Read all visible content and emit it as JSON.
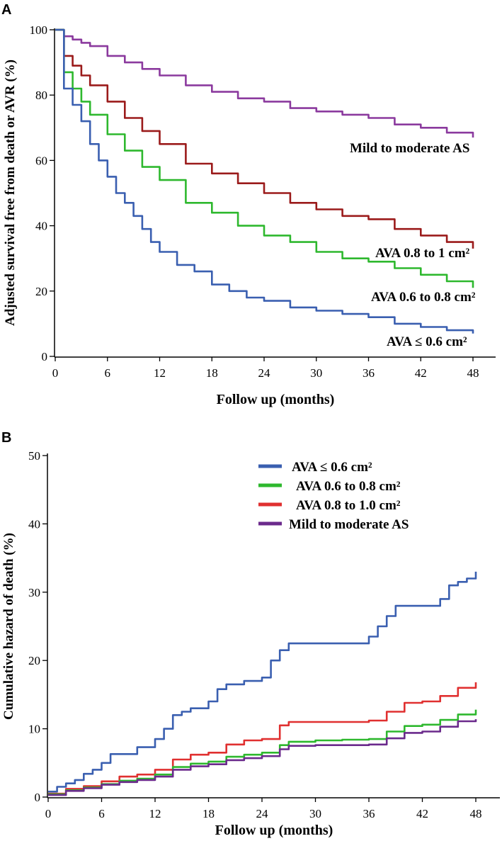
{
  "chart_data": [
    {
      "type": "line",
      "panel_label": "A",
      "xlabel": "Follow up (months)",
      "ylabel": "Adjusted survival free from death or AVR (%)",
      "xlim": [
        0,
        48
      ],
      "ylim": [
        0,
        100
      ],
      "xticks": [
        0,
        6,
        12,
        18,
        24,
        30,
        36,
        42,
        48
      ],
      "yticks": [
        0,
        20,
        40,
        60,
        80,
        100
      ],
      "series": [
        {
          "name": "Mild to moderate AS",
          "color": "#8b3a9e",
          "x": [
            0,
            1,
            2,
            3,
            4,
            6,
            8,
            10,
            12,
            15,
            18,
            21,
            24,
            27,
            30,
            33,
            36,
            39,
            42,
            45,
            48
          ],
          "y": [
            100,
            98,
            97,
            96,
            95,
            92,
            90,
            88,
            86,
            83,
            81,
            79,
            78,
            76,
            75,
            74,
            73,
            71,
            70,
            68.5,
            67
          ]
        },
        {
          "name": "AVA 0.8 to 1 cm²",
          "color": "#9b1b1b",
          "x": [
            0,
            1,
            2,
            3,
            4,
            6,
            8,
            10,
            12,
            15,
            18,
            21,
            24,
            27,
            30,
            33,
            36,
            39,
            42,
            45,
            48
          ],
          "y": [
            100,
            92,
            89,
            86,
            83,
            78,
            73,
            69,
            65,
            59,
            56,
            53,
            50,
            47,
            45,
            43,
            42,
            39,
            37,
            35,
            33
          ]
        },
        {
          "name": "AVA 0.6 to 0.8 cm²",
          "color": "#2eb82e",
          "x": [
            0,
            1,
            2,
            3,
            4,
            6,
            8,
            10,
            12,
            15,
            18,
            21,
            24,
            27,
            30,
            33,
            36,
            39,
            42,
            45,
            48
          ],
          "y": [
            100,
            87,
            82,
            78,
            74,
            68,
            63,
            58,
            54,
            47,
            44,
            40,
            37,
            35,
            32,
            30,
            29,
            27,
            25,
            23,
            21
          ]
        },
        {
          "name": "AVA ≤ 0.6 cm²",
          "color": "#3a5fb0",
          "x": [
            0,
            1,
            2,
            3,
            4,
            5,
            6,
            7,
            8,
            9,
            10,
            11,
            12,
            14,
            16,
            18,
            20,
            22,
            24,
            27,
            30,
            33,
            36,
            39,
            42,
            45,
            48
          ],
          "y": [
            100,
            82,
            77,
            72,
            65,
            60,
            55,
            50,
            47,
            43,
            39,
            35,
            32,
            28,
            26,
            22,
            20,
            18,
            17,
            15,
            14,
            13,
            12,
            10,
            9,
            8,
            7
          ]
        }
      ],
      "annotations": [
        "Mild to moderate AS",
        "AVA 0.8 to 1 cm²",
        "AVA 0.6 to 0.8 cm²",
        "AVA ≤ 0.6 cm²"
      ]
    },
    {
      "type": "line",
      "panel_label": "B",
      "xlabel": "Follow up (months)",
      "ylabel": "Cumulative hazard of death (%)",
      "xlim": [
        0,
        48
      ],
      "ylim": [
        0,
        50
      ],
      "xticks": [
        0,
        6,
        12,
        18,
        24,
        30,
        36,
        42,
        48
      ],
      "yticks": [
        0,
        10,
        20,
        30,
        40,
        50
      ],
      "legend": [
        "AVA ≤ 0.6 cm²",
        "AVA 0.6 to 0.8 cm²",
        "AVA 0.8 to 1.0 cm²",
        "Mild to moderate AS"
      ],
      "legend_position": "top-right",
      "series": [
        {
          "name": "AVA ≤ 0.6 cm²",
          "color": "#3a5fb0",
          "x": [
            0,
            1,
            2,
            3,
            4,
            5,
            6,
            7,
            8,
            10,
            12,
            13,
            14,
            15,
            16,
            18,
            19,
            20,
            22,
            24,
            25,
            26,
            27,
            30,
            33,
            36,
            37,
            38,
            39,
            42,
            44,
            45,
            46,
            47,
            48
          ],
          "y": [
            0.8,
            1.5,
            2,
            2.5,
            3.4,
            4,
            5,
            6.3,
            6.3,
            7.3,
            8.5,
            10,
            12,
            12.5,
            13,
            14,
            15.8,
            16.5,
            17,
            17.5,
            20,
            21.5,
            22.5,
            22.5,
            22.5,
            23.5,
            25,
            26.5,
            28,
            28,
            29,
            31,
            31.5,
            32,
            33
          ]
        },
        {
          "name": "AVA 0.8 to 1.0 cm²",
          "color": "#e03030",
          "x": [
            0,
            2,
            4,
            6,
            8,
            10,
            12,
            14,
            16,
            18,
            20,
            22,
            24,
            26,
            27,
            30,
            33,
            36,
            38,
            40,
            42,
            44,
            46,
            48
          ],
          "y": [
            0.5,
            1.2,
            1.6,
            2.3,
            3,
            3.3,
            4,
            5.5,
            6.2,
            6.5,
            7.7,
            8.3,
            8.5,
            10.5,
            11,
            11,
            11,
            11.2,
            12.5,
            13.8,
            14,
            14.8,
            16,
            16.8
          ]
        },
        {
          "name": "AVA 0.6 to 0.8 cm²",
          "color": "#2eb82e",
          "x": [
            0,
            2,
            4,
            6,
            8,
            10,
            12,
            14,
            16,
            18,
            20,
            22,
            24,
            26,
            27,
            30,
            33,
            36,
            38,
            40,
            42,
            44,
            46,
            48
          ],
          "y": [
            0.4,
            1,
            1.4,
            1.9,
            2.4,
            2.7,
            3.3,
            4.4,
            4.9,
            5.2,
            5.9,
            6.2,
            6.5,
            7.6,
            8.1,
            8.3,
            8.4,
            8.5,
            9.6,
            10.4,
            10.6,
            11.3,
            12.1,
            12.8
          ]
        },
        {
          "name": "Mild to moderate AS",
          "color": "#6b2a8c",
          "x": [
            0,
            2,
            4,
            6,
            8,
            10,
            12,
            14,
            16,
            18,
            20,
            22,
            24,
            26,
            27,
            30,
            33,
            36,
            38,
            40,
            42,
            44,
            46,
            48
          ],
          "y": [
            0.3,
            0.9,
            1.3,
            1.8,
            2.2,
            2.5,
            3,
            4,
            4.5,
            4.8,
            5.4,
            5.7,
            6,
            7,
            7.5,
            7.6,
            7.6,
            7.7,
            8.6,
            9.4,
            9.6,
            10.3,
            11.1,
            11.4
          ]
        }
      ]
    }
  ]
}
